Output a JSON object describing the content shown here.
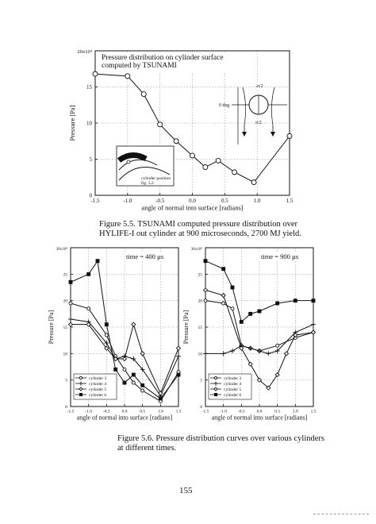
{
  "figure55": {
    "caption_line1": "Figure 5.5.  TSUNAMI computed pressure distribution over",
    "caption_line2": "HYLIFE-I out cylinder at 900 microseconds, 2700 MJ yield.",
    "inset_label_line1": "cylinder position",
    "inset_label_line2": "fig. 5.2",
    "diagram_label_top": "-π/2",
    "diagram_label_left": "0 deg",
    "diagram_label_bottom": "π/2"
  },
  "figure56": {
    "caption_line1": "Figure 5.6.  Pressure distribution curves over various cylinders",
    "caption_line2": "at different times."
  },
  "page_number": "155",
  "chart_data": [
    {
      "id": "fig55",
      "type": "line",
      "title": "Pressure distribution on cylinder surface",
      "subtitle": "computed by TSUNAMI",
      "xlabel": "angle of normal into surface [radians]",
      "ylabel": "Pressure [Pa]",
      "y_multiplier": "20x10⁴",
      "xlim": [
        -1.5,
        1.5
      ],
      "ylim": [
        0,
        20
      ],
      "xticks": [
        -1.5,
        -1.0,
        -0.5,
        0,
        0.5,
        1.0,
        1.5
      ],
      "xtick_labels": [
        "-1.5",
        "-1.0",
        "-0.5",
        "0.0",
        "0.5",
        "1.0",
        "1.5"
      ],
      "yticks": [
        0,
        5,
        10,
        15
      ],
      "ytick_labels": [
        "0",
        "5",
        "10",
        "15"
      ],
      "grid": true,
      "series": [
        {
          "x": [
            -1.5,
            -1.0,
            -0.75,
            -0.5,
            -0.25,
            0.0,
            0.2,
            0.4,
            0.65,
            0.95,
            1.5
          ],
          "y": [
            16.8,
            16.5,
            14.0,
            9.8,
            7.5,
            5.5,
            3.9,
            4.8,
            3.2,
            1.8,
            8.2
          ]
        }
      ]
    },
    {
      "id": "fig56a",
      "type": "line",
      "annotation": "time = 400 µs",
      "xlabel": "angle of normal into surface [radians]",
      "ylabel": "Pressure [Pa]",
      "y_multiplier": "30x10⁴",
      "xlim": [
        -1.5,
        1.5
      ],
      "ylim": [
        0,
        30
      ],
      "xticks": [
        -1.5,
        -1.0,
        -0.5,
        0,
        0.5,
        1.0,
        1.5
      ],
      "xtick_labels": [
        "-1.5",
        "-1.0",
        "-0.5",
        "0.0",
        "0.5",
        "1.0",
        "1.5"
      ],
      "yticks": [
        0,
        5,
        10,
        15,
        20,
        25
      ],
      "ytick_labels": [
        "0",
        "5",
        "10",
        "15",
        "20",
        "25"
      ],
      "grid": true,
      "legend": "bottom-left",
      "series": [
        {
          "name": "cylinder 3",
          "marker": "circle",
          "x": [
            -1.5,
            -1.0,
            -0.5,
            -0.25,
            0.0,
            0.25,
            0.5,
            1.0,
            1.5
          ],
          "y": [
            19.5,
            18.5,
            13.5,
            9.5,
            7.0,
            4.5,
            3.0,
            1.0,
            6.5
          ]
        },
        {
          "name": "cylinder 4",
          "marker": "plus",
          "x": [
            -1.5,
            -1.0,
            -0.5,
            -0.25,
            0.0,
            0.25,
            0.5,
            1.0,
            1.5
          ],
          "y": [
            16.5,
            16.0,
            12.0,
            9.0,
            9.5,
            9.0,
            7.0,
            2.0,
            9.5
          ]
        },
        {
          "name": "cylinder 5",
          "marker": "diamond",
          "x": [
            -1.5,
            -1.0,
            -0.5,
            -0.25,
            0.0,
            0.25,
            0.5,
            1.0,
            1.5
          ],
          "y": [
            15.5,
            15.5,
            11.0,
            9.0,
            9.0,
            15.5,
            10.0,
            2.5,
            11.0
          ]
        },
        {
          "name": "cylinder 6",
          "marker": "square",
          "x": [
            -1.5,
            -1.0,
            -0.75,
            -0.5,
            -0.25,
            0.0,
            0.25,
            0.5,
            1.0,
            1.5
          ],
          "y": [
            23.5,
            25.0,
            27.5,
            15.5,
            7.0,
            4.5,
            6.0,
            4.0,
            1.5,
            6.0
          ]
        }
      ]
    },
    {
      "id": "fig56b",
      "type": "line",
      "annotation": "time = 900 µs",
      "xlabel": "angle of normal into surface [radians]",
      "ylabel": "Pressure [Pa]",
      "y_multiplier": "30x10⁴",
      "xlim": [
        -1.5,
        1.5
      ],
      "ylim": [
        0,
        30
      ],
      "xticks": [
        -1.5,
        -1.0,
        -0.5,
        0,
        0.5,
        1.0,
        1.5
      ],
      "xtick_labels": [
        "-1.5",
        "-1.0",
        "-0.5",
        "0.0",
        "0.5",
        "1.0",
        "1.5"
      ],
      "yticks": [
        0,
        5,
        10,
        15,
        20,
        25
      ],
      "ytick_labels": [
        "0",
        "5",
        "10",
        "15",
        "20",
        "25"
      ],
      "grid": true,
      "legend": "bottom-left",
      "series": [
        {
          "name": "cylinder 3",
          "marker": "circle",
          "x": [
            -1.5,
            -1.0,
            -0.75,
            -0.5,
            -0.25,
            0.0,
            0.5,
            1.0,
            1.5
          ],
          "y": [
            20.0,
            19.5,
            18.5,
            11.5,
            11.0,
            10.5,
            11.5,
            13.0,
            14.0
          ]
        },
        {
          "name": "cylinder 4",
          "marker": "plus",
          "x": [
            -1.5,
            -1.0,
            -0.75,
            -0.5,
            -0.25,
            0.0,
            0.25,
            0.5,
            1.0,
            1.5
          ],
          "y": [
            10.0,
            10.0,
            10.5,
            11.5,
            11.0,
            10.5,
            10.0,
            10.5,
            14.0,
            15.5
          ]
        },
        {
          "name": "cylinder 5",
          "marker": "diamond",
          "x": [
            -1.5,
            -1.0,
            -0.5,
            -0.25,
            0.0,
            0.25,
            0.5,
            0.75,
            1.0,
            1.5
          ],
          "y": [
            22.0,
            21.0,
            11.0,
            8.0,
            5.0,
            3.5,
            6.0,
            10.0,
            13.5,
            14.0
          ]
        },
        {
          "name": "cylinder 6",
          "marker": "square",
          "x": [
            -1.5,
            -1.0,
            -0.75,
            -0.5,
            -0.25,
            0.0,
            0.5,
            1.0,
            1.5
          ],
          "y": [
            27.5,
            26.0,
            22.5,
            16.0,
            17.5,
            18.0,
            19.5,
            20.0,
            20.0
          ]
        }
      ]
    }
  ]
}
